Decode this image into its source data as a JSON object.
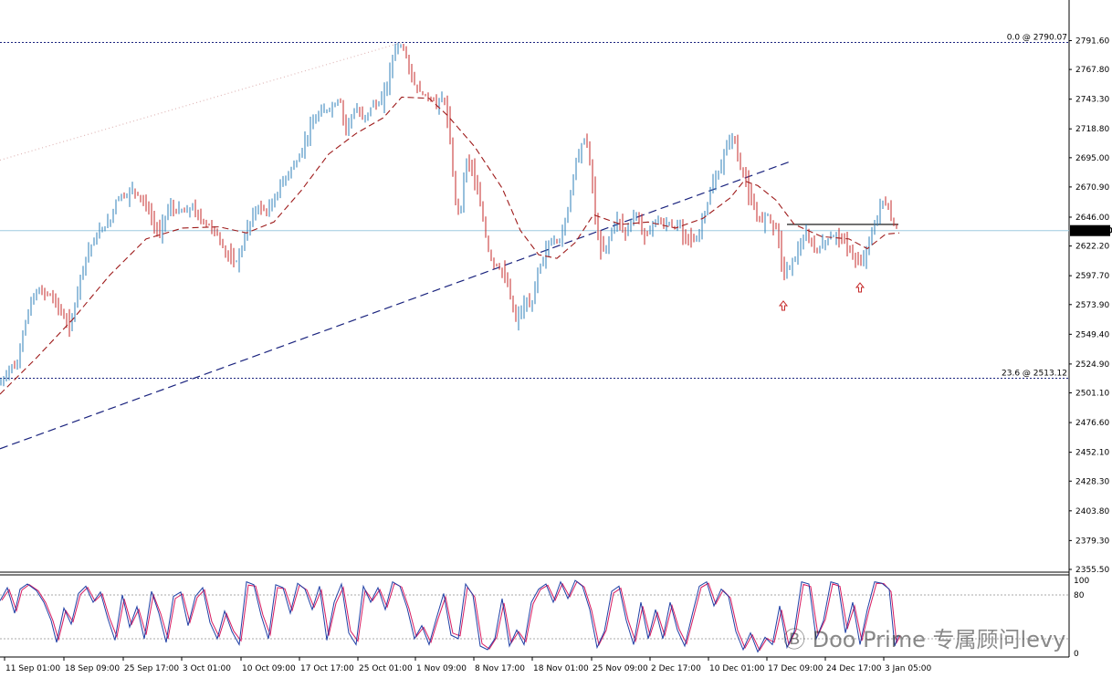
{
  "chart_data": {
    "type": "candlestick",
    "price_axis": {
      "ylim": [
        2355.5,
        2802.5
      ],
      "ticks": [
        "2791.60",
        "2767.80",
        "2743.30",
        "2718.80",
        "2695.00",
        "2670.90",
        "2646.00",
        "2622.20",
        "2597.70",
        "2573.90",
        "2549.40",
        "2524.90",
        "2501.10",
        "2476.60",
        "2452.10",
        "2428.30",
        "2403.80",
        "2379.30",
        "2355.50"
      ]
    },
    "current_price": "2634.90",
    "fib_levels": [
      {
        "label": "0.0 @ 2790.07",
        "value": 2790.07
      },
      {
        "label": "23.6 @ 2513.12",
        "value": 2513.12
      }
    ],
    "time_labels": [
      "11 Sep 01:00",
      "18 Sep 09:00",
      "25 Sep 17:00",
      "3 Oct 01:00",
      "10 Oct 09:00",
      "17 Oct 17:00",
      "25 Oct 01:00",
      "1 Nov 09:00",
      "8 Nov 17:00",
      "18 Nov 01:00",
      "25 Nov 09:00",
      "2 Dec 17:00",
      "10 Dec 01:00",
      "17 Dec 09:00",
      "24 Dec 17:00",
      "3 Jan 05:00"
    ],
    "close_path": [
      [
        0,
        2508
      ],
      [
        6,
        2515
      ],
      [
        12,
        2525
      ],
      [
        18,
        2520
      ],
      [
        24,
        2548
      ],
      [
        30,
        2565
      ],
      [
        36,
        2580
      ],
      [
        42,
        2585
      ],
      [
        48,
        2584
      ],
      [
        54,
        2582
      ],
      [
        60,
        2578
      ],
      [
        66,
        2568
      ],
      [
        72,
        2560
      ],
      [
        78,
        2556
      ],
      [
        84,
        2584
      ],
      [
        90,
        2602
      ],
      [
        96,
        2618
      ],
      [
        102,
        2625
      ],
      [
        108,
        2633
      ],
      [
        114,
        2638
      ],
      [
        120,
        2641
      ],
      [
        126,
        2658
      ],
      [
        132,
        2665
      ],
      [
        138,
        2662
      ],
      [
        144,
        2670
      ],
      [
        150,
        2665
      ],
      [
        156,
        2660
      ],
      [
        162,
        2653
      ],
      [
        168,
        2640
      ],
      [
        174,
        2632
      ],
      [
        180,
        2645
      ],
      [
        186,
        2655
      ],
      [
        192,
        2650
      ],
      [
        198,
        2652
      ],
      [
        204,
        2649
      ],
      [
        210,
        2655
      ],
      [
        216,
        2648
      ],
      [
        222,
        2642
      ],
      [
        228,
        2640
      ],
      [
        234,
        2636
      ],
      [
        240,
        2628
      ],
      [
        246,
        2618
      ],
      [
        252,
        2612
      ],
      [
        258,
        2608
      ],
      [
        264,
        2618
      ],
      [
        270,
        2635
      ],
      [
        276,
        2645
      ],
      [
        282,
        2655
      ],
      [
        288,
        2652
      ],
      [
        294,
        2650
      ],
      [
        300,
        2660
      ],
      [
        306,
        2670
      ],
      [
        312,
        2678
      ],
      [
        318,
        2685
      ],
      [
        324,
        2690
      ],
      [
        330,
        2700
      ],
      [
        336,
        2712
      ],
      [
        342,
        2722
      ],
      [
        348,
        2730
      ],
      [
        354,
        2733
      ],
      [
        360,
        2735
      ],
      [
        366,
        2738
      ],
      [
        372,
        2745
      ],
      [
        378,
        2718
      ],
      [
        384,
        2728
      ],
      [
        390,
        2735
      ],
      [
        396,
        2728
      ],
      [
        402,
        2730
      ],
      [
        408,
        2740
      ],
      [
        414,
        2738
      ],
      [
        420,
        2745
      ],
      [
        426,
        2762
      ],
      [
        432,
        2785
      ],
      [
        438,
        2788
      ],
      [
        444,
        2782
      ],
      [
        450,
        2762
      ],
      [
        456,
        2752
      ],
      [
        462,
        2748
      ],
      [
        468,
        2745
      ],
      [
        474,
        2742
      ],
      [
        480,
        2740
      ],
      [
        486,
        2745
      ],
      [
        492,
        2718
      ],
      [
        498,
        2662
      ],
      [
        504,
        2648
      ],
      [
        510,
        2693
      ],
      [
        516,
        2690
      ],
      [
        522,
        2668
      ],
      [
        528,
        2650
      ],
      [
        534,
        2620
      ],
      [
        540,
        2608
      ],
      [
        546,
        2605
      ],
      [
        552,
        2598
      ],
      [
        558,
        2585
      ],
      [
        564,
        2560
      ],
      [
        570,
        2568
      ],
      [
        576,
        2575
      ],
      [
        582,
        2570
      ],
      [
        588,
        2600
      ],
      [
        594,
        2610
      ],
      [
        600,
        2622
      ],
      [
        606,
        2628
      ],
      [
        612,
        2625
      ],
      [
        618,
        2638
      ],
      [
        624,
        2662
      ],
      [
        630,
        2690
      ],
      [
        636,
        2705
      ],
      [
        642,
        2712
      ],
      [
        648,
        2680
      ],
      [
        654,
        2630
      ],
      [
        660,
        2618
      ],
      [
        666,
        2625
      ],
      [
        672,
        2640
      ],
      [
        678,
        2645
      ],
      [
        684,
        2632
      ],
      [
        690,
        2640
      ],
      [
        696,
        2650
      ],
      [
        702,
        2638
      ],
      [
        708,
        2630
      ],
      [
        714,
        2640
      ],
      [
        720,
        2645
      ],
      [
        726,
        2638
      ],
      [
        732,
        2642
      ],
      [
        738,
        2636
      ],
      [
        744,
        2640
      ],
      [
        750,
        2632
      ],
      [
        756,
        2630
      ],
      [
        762,
        2625
      ],
      [
        768,
        2640
      ],
      [
        774,
        2655
      ],
      [
        780,
        2672
      ],
      [
        786,
        2680
      ],
      [
        792,
        2695
      ],
      [
        798,
        2710
      ],
      [
        804,
        2712
      ],
      [
        810,
        2688
      ],
      [
        816,
        2678
      ],
      [
        822,
        2660
      ],
      [
        828,
        2648
      ],
      [
        834,
        2642
      ],
      [
        840,
        2650
      ],
      [
        846,
        2640
      ],
      [
        852,
        2635
      ],
      [
        858,
        2598
      ],
      [
        864,
        2605
      ],
      [
        870,
        2612
      ],
      [
        876,
        2622
      ],
      [
        882,
        2630
      ],
      [
        888,
        2625
      ],
      [
        894,
        2618
      ],
      [
        900,
        2622
      ],
      [
        906,
        2628
      ],
      [
        912,
        2630
      ],
      [
        918,
        2632
      ],
      [
        924,
        2625
      ],
      [
        930,
        2620
      ],
      [
        936,
        2612
      ],
      [
        942,
        2605
      ],
      [
        948,
        2618
      ],
      [
        954,
        2630
      ],
      [
        960,
        2645
      ],
      [
        966,
        2660
      ],
      [
        972,
        2655
      ],
      [
        978,
        2640
      ],
      [
        984,
        2634.9
      ]
    ],
    "moving_average": [
      [
        0,
        2500
      ],
      [
        40,
        2530
      ],
      [
        80,
        2562
      ],
      [
        120,
        2598
      ],
      [
        160,
        2628
      ],
      [
        200,
        2637
      ],
      [
        240,
        2638
      ],
      [
        270,
        2633
      ],
      [
        300,
        2642
      ],
      [
        330,
        2668
      ],
      [
        360,
        2698
      ],
      [
        390,
        2715
      ],
      [
        420,
        2728
      ],
      [
        440,
        2745
      ],
      [
        470,
        2744
      ],
      [
        490,
        2730
      ],
      [
        520,
        2704
      ],
      [
        550,
        2670
      ],
      [
        570,
        2635
      ],
      [
        590,
        2615
      ],
      [
        610,
        2612
      ],
      [
        630,
        2625
      ],
      [
        650,
        2648
      ],
      [
        680,
        2640
      ],
      [
        710,
        2642
      ],
      [
        740,
        2637
      ],
      [
        770,
        2645
      ],
      [
        800,
        2662
      ],
      [
        815,
        2676
      ],
      [
        830,
        2672
      ],
      [
        850,
        2660
      ],
      [
        870,
        2640
      ],
      [
        900,
        2630
      ],
      [
        930,
        2628
      ],
      [
        950,
        2620
      ],
      [
        970,
        2632
      ],
      [
        985,
        2633
      ]
    ],
    "trendlines": [
      {
        "points": [
          [
            0,
            2455
          ],
          [
            866,
            2692
          ]
        ],
        "style": "dashed",
        "color": "#1a237e"
      },
      {
        "points": [
          [
            0,
            2693
          ],
          [
            440,
            2790
          ]
        ],
        "style": "dotted",
        "color": "#e0b8b8"
      },
      {
        "points": [
          [
            862,
            2640
          ],
          [
            984,
            2640
          ]
        ],
        "style": "solid",
        "color": "#000000"
      }
    ],
    "arrows": [
      [
        858,
        2573
      ],
      [
        942,
        2588
      ]
    ],
    "stochastic": {
      "ylim": [
        0,
        100
      ],
      "ticks": [
        "100",
        "80",
        "0"
      ],
      "k": [
        [
          0,
          72
        ],
        [
          8,
          90
        ],
        [
          16,
          55
        ],
        [
          22,
          88
        ],
        [
          30,
          95
        ],
        [
          40,
          86
        ],
        [
          48,
          70
        ],
        [
          56,
          45
        ],
        [
          62,
          15
        ],
        [
          70,
          62
        ],
        [
          78,
          40
        ],
        [
          86,
          82
        ],
        [
          94,
          92
        ],
        [
          102,
          70
        ],
        [
          110,
          84
        ],
        [
          118,
          48
        ],
        [
          126,
          18
        ],
        [
          134,
          80
        ],
        [
          142,
          36
        ],
        [
          150,
          64
        ],
        [
          158,
          20
        ],
        [
          166,
          85
        ],
        [
          174,
          55
        ],
        [
          182,
          15
        ],
        [
          190,
          78
        ],
        [
          198,
          84
        ],
        [
          206,
          38
        ],
        [
          214,
          78
        ],
        [
          222,
          90
        ],
        [
          230,
          42
        ],
        [
          238,
          20
        ],
        [
          246,
          58
        ],
        [
          254,
          30
        ],
        [
          262,
          12
        ],
        [
          270,
          98
        ],
        [
          278,
          94
        ],
        [
          286,
          52
        ],
        [
          294,
          20
        ],
        [
          302,
          94
        ],
        [
          310,
          90
        ],
        [
          318,
          55
        ],
        [
          326,
          96
        ],
        [
          334,
          88
        ],
        [
          342,
          60
        ],
        [
          350,
          92
        ],
        [
          358,
          18
        ],
        [
          366,
          70
        ],
        [
          374,
          95
        ],
        [
          382,
          28
        ],
        [
          390,
          12
        ],
        [
          398,
          92
        ],
        [
          406,
          70
        ],
        [
          414,
          90
        ],
        [
          422,
          60
        ],
        [
          430,
          98
        ],
        [
          438,
          92
        ],
        [
          446,
          62
        ],
        [
          454,
          20
        ],
        [
          462,
          38
        ],
        [
          470,
          12
        ],
        [
          478,
          48
        ],
        [
          486,
          82
        ],
        [
          494,
          25
        ],
        [
          502,
          20
        ],
        [
          510,
          95
        ],
        [
          518,
          80
        ],
        [
          526,
          10
        ],
        [
          534,
          5
        ],
        [
          542,
          20
        ],
        [
          550,
          75
        ],
        [
          558,
          10
        ],
        [
          566,
          32
        ],
        [
          574,
          12
        ],
        [
          582,
          70
        ],
        [
          590,
          88
        ],
        [
          598,
          95
        ],
        [
          606,
          70
        ],
        [
          614,
          98
        ],
        [
          622,
          75
        ],
        [
          630,
          100
        ],
        [
          638,
          92
        ],
        [
          646,
          60
        ],
        [
          654,
          8
        ],
        [
          662,
          30
        ],
        [
          670,
          85
        ],
        [
          678,
          92
        ],
        [
          686,
          45
        ],
        [
          694,
          12
        ],
        [
          702,
          70
        ],
        [
          710,
          20
        ],
        [
          718,
          60
        ],
        [
          726,
          20
        ],
        [
          734,
          70
        ],
        [
          742,
          32
        ],
        [
          750,
          10
        ],
        [
          758,
          52
        ],
        [
          766,
          92
        ],
        [
          774,
          98
        ],
        [
          782,
          65
        ],
        [
          790,
          88
        ],
        [
          798,
          78
        ],
        [
          806,
          30
        ],
        [
          814,
          5
        ],
        [
          822,
          28
        ],
        [
          830,
          2
        ],
        [
          838,
          22
        ],
        [
          846,
          12
        ],
        [
          854,
          65
        ],
        [
          862,
          8
        ],
        [
          870,
          30
        ],
        [
          878,
          98
        ],
        [
          886,
          95
        ],
        [
          894,
          20
        ],
        [
          902,
          45
        ],
        [
          910,
          98
        ],
        [
          918,
          95
        ],
        [
          926,
          28
        ],
        [
          934,
          70
        ],
        [
          942,
          12
        ],
        [
          950,
          60
        ],
        [
          958,
          98
        ],
        [
          966,
          96
        ],
        [
          974,
          88
        ],
        [
          980,
          10
        ],
        [
          984,
          25
        ]
      ]
    }
  },
  "watermark": "Ⓑ Doo Prime 专属顾问levy",
  "colors": {
    "bull": "#2e7fb8",
    "bear": "#c62828",
    "fib_line": "#1a237e",
    "ma": "#9e1b1b",
    "stoch_k": "#1f3fa5",
    "stoch_d": "#d81b60",
    "price_line": "#9fcbe0"
  }
}
